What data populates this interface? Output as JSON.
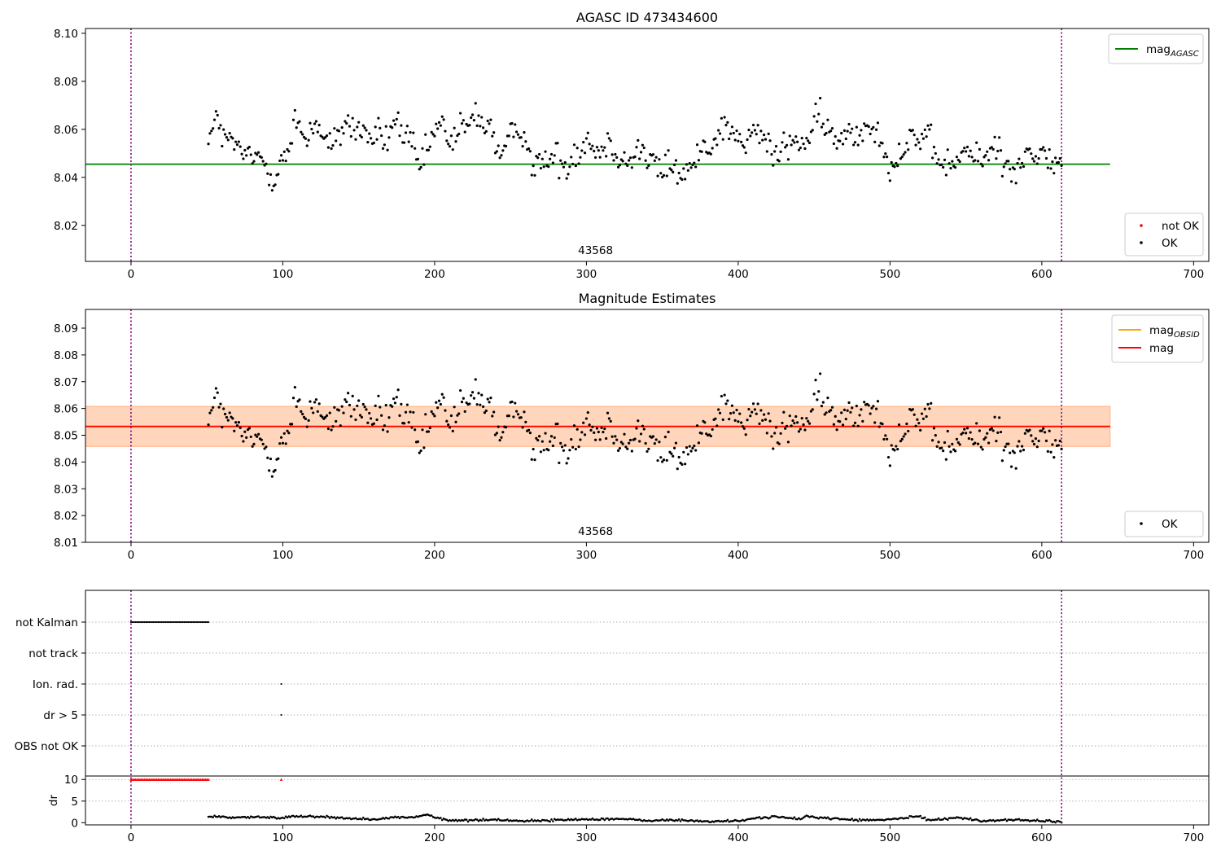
{
  "chart_data": [
    {
      "id": "panel1",
      "type": "scatter",
      "title": "AGASC ID 473434600",
      "xlim": [
        -30,
        710
      ],
      "ylim": [
        8.005,
        8.102
      ],
      "xticks": [
        0,
        100,
        200,
        300,
        400,
        500,
        600,
        700
      ],
      "yticks": [
        8.02,
        8.04,
        8.06,
        8.08,
        8.1
      ],
      "ytick_format": 2,
      "obsid_label": {
        "text": "43568",
        "x": 306
      },
      "vlines": [
        0,
        613
      ],
      "vline_color": "#800080",
      "hlines": [
        {
          "name": "mag_AGASC",
          "y": 8.0455,
          "x": [
            -30,
            645
          ],
          "color": "#008000"
        }
      ],
      "legend_top": [
        {
          "label_main": "mag",
          "label_sub": "AGASC",
          "kind": "line",
          "color": "#008000"
        }
      ],
      "legend_bottom": [
        {
          "label": "not OK",
          "kind": "dot",
          "color": "#ff0000"
        },
        {
          "label": "OK",
          "kind": "dot",
          "color": "#000000"
        }
      ],
      "series": [
        {
          "name": "OK",
          "color": "#000000",
          "source": "mag_points"
        }
      ]
    },
    {
      "id": "panel2",
      "type": "scatter",
      "title": "Magnitude Estimates",
      "xlim": [
        -30,
        710
      ],
      "ylim": [
        8.01,
        8.097
      ],
      "xticks": [
        0,
        100,
        200,
        300,
        400,
        500,
        600,
        700
      ],
      "yticks": [
        8.01,
        8.02,
        8.03,
        8.04,
        8.05,
        8.06,
        8.07,
        8.08,
        8.09
      ],
      "ytick_format": 2,
      "obsid_label": {
        "text": "43568",
        "x": 306
      },
      "vlines": [
        0,
        613
      ],
      "vline_color": "#800080",
      "bands": [
        {
          "y": [
            8.0458,
            8.0608
          ],
          "x": [
            -30,
            645
          ],
          "color": "#ff69b4",
          "opacity": 0.18
        },
        {
          "y": [
            8.0458,
            8.0608
          ],
          "x": [
            -30,
            645
          ],
          "color": "#ffa500",
          "opacity": 0.22
        }
      ],
      "hlines": [
        {
          "name": "mag_OBSID",
          "y": 8.0532,
          "x": [
            -30,
            645
          ],
          "color": "#ffa500"
        },
        {
          "name": "mag",
          "y": 8.0533,
          "x": [
            -30,
            645
          ],
          "color": "#ff0000"
        }
      ],
      "legend_top": [
        {
          "label_main": "mag",
          "label_sub": "OBSID",
          "kind": "line",
          "color": "#ffa500"
        },
        {
          "label_main": "mag",
          "label_sub": "",
          "kind": "line",
          "color": "#ff0000"
        }
      ],
      "legend_bottom": [
        {
          "label": "OK",
          "kind": "dot",
          "color": "#000000"
        }
      ],
      "series": [
        {
          "name": "OK",
          "color": "#000000",
          "source": "mag_points"
        }
      ]
    },
    {
      "id": "panel3",
      "type": "scatter",
      "xlim": [
        -30,
        710
      ],
      "xticks": [
        0,
        100,
        200,
        300,
        400,
        500,
        600,
        700
      ],
      "vlines": [
        0,
        613
      ],
      "vline_color": "#800080",
      "flag_rows": [
        "not Kalman",
        "not track",
        "Ion. rad.",
        "dr > 5",
        "OBS not OK"
      ],
      "flags": [
        {
          "row": "not Kalman",
          "x_start": 0,
          "x_end": 51,
          "step": 1
        },
        {
          "row": "Ion. rad.",
          "x": [
            99
          ]
        },
        {
          "row": "dr > 5",
          "x": [
            99
          ]
        }
      ],
      "dr": {
        "ylabel": "dr",
        "ylim": [
          -0.5,
          10.8
        ],
        "yticks": [
          0,
          5,
          10
        ],
        "capped_value": 10,
        "capped_color": "#ff0000",
        "capped": [
          {
            "x_start": 0,
            "x_end": 51,
            "step": 1
          },
          {
            "x": [
              99
            ]
          }
        ],
        "anchors": [
          [
            51,
            1.2
          ],
          [
            55,
            1.5
          ],
          [
            65,
            1.2
          ],
          [
            80,
            1.3
          ],
          [
            90,
            1.2
          ],
          [
            100,
            1.1
          ],
          [
            105,
            1.5
          ],
          [
            120,
            1.5
          ],
          [
            135,
            1.2
          ],
          [
            150,
            0.9
          ],
          [
            165,
            0.9
          ],
          [
            176,
            1.3
          ],
          [
            185,
            1.2
          ],
          [
            195,
            1.9
          ],
          [
            200,
            1.2
          ],
          [
            210,
            0.5
          ],
          [
            225,
            0.6
          ],
          [
            240,
            0.7
          ],
          [
            260,
            0.4
          ],
          [
            280,
            0.6
          ],
          [
            300,
            0.8
          ],
          [
            320,
            0.9
          ],
          [
            340,
            0.5
          ],
          [
            360,
            0.6
          ],
          [
            380,
            0.3
          ],
          [
            400,
            0.4
          ],
          [
            415,
            1.2
          ],
          [
            425,
            1.4
          ],
          [
            440,
            0.8
          ],
          [
            445,
            1.5
          ],
          [
            460,
            1.0
          ],
          [
            480,
            0.6
          ],
          [
            495,
            0.6
          ],
          [
            500,
            0.8
          ],
          [
            510,
            1.1
          ],
          [
            520,
            1.5
          ],
          [
            525,
            0.6
          ],
          [
            535,
            0.9
          ],
          [
            545,
            1.2
          ],
          [
            560,
            0.4
          ],
          [
            580,
            0.7
          ],
          [
            600,
            0.4
          ],
          [
            613,
            0.2
          ]
        ]
      }
    }
  ],
  "mag_points": {
    "x_start": 51,
    "x_end": 613,
    "step": 1,
    "anchors": [
      [
        51,
        8.061
      ],
      [
        55,
        8.061
      ],
      [
        57,
        8.068
      ],
      [
        60,
        8.056
      ],
      [
        65,
        8.053
      ],
      [
        70,
        8.053
      ],
      [
        75,
        8.052
      ],
      [
        80,
        8.046
      ],
      [
        85,
        8.047
      ],
      [
        90,
        8.044
      ],
      [
        95,
        8.043
      ],
      [
        98,
        8.046
      ],
      [
        100,
        8.045
      ],
      [
        103,
        8.048
      ],
      [
        105,
        8.052
      ],
      [
        108,
        8.063
      ],
      [
        112,
        8.062
      ],
      [
        118,
        8.057
      ],
      [
        123,
        8.061
      ],
      [
        130,
        8.055
      ],
      [
        135,
        8.056
      ],
      [
        140,
        8.059
      ],
      [
        145,
        8.061
      ],
      [
        150,
        8.062
      ],
      [
        155,
        8.059
      ],
      [
        160,
        8.054
      ],
      [
        165,
        8.056
      ],
      [
        170,
        8.06
      ],
      [
        175,
        8.064
      ],
      [
        180,
        8.055
      ],
      [
        185,
        8.052
      ],
      [
        190,
        8.048
      ],
      [
        195,
        8.049
      ],
      [
        200,
        8.058
      ],
      [
        205,
        8.061
      ],
      [
        210,
        8.058
      ],
      [
        215,
        8.058
      ],
      [
        220,
        8.058
      ],
      [
        225,
        8.065
      ],
      [
        230,
        8.068
      ],
      [
        235,
        8.061
      ],
      [
        240,
        8.052
      ],
      [
        245,
        8.05
      ],
      [
        250,
        8.058
      ],
      [
        255,
        8.06
      ],
      [
        260,
        8.053
      ],
      [
        265,
        8.048
      ],
      [
        270,
        8.046
      ],
      [
        275,
        8.047
      ],
      [
        280,
        8.046
      ],
      [
        285,
        8.047
      ],
      [
        290,
        8.049
      ],
      [
        295,
        8.05
      ],
      [
        300,
        8.054
      ],
      [
        305,
        8.055
      ],
      [
        310,
        8.053
      ],
      [
        315,
        8.052
      ],
      [
        320,
        8.049
      ],
      [
        325,
        8.05
      ],
      [
        330,
        8.049
      ],
      [
        335,
        8.049
      ],
      [
        340,
        8.048
      ],
      [
        345,
        8.047
      ],
      [
        350,
        8.044
      ],
      [
        355,
        8.042
      ],
      [
        360,
        8.043
      ],
      [
        365,
        8.043
      ],
      [
        370,
        8.045
      ],
      [
        375,
        8.048
      ],
      [
        380,
        8.054
      ],
      [
        385,
        8.059
      ],
      [
        390,
        8.061
      ],
      [
        395,
        8.058
      ],
      [
        400,
        8.056
      ],
      [
        405,
        8.056
      ],
      [
        410,
        8.058
      ],
      [
        415,
        8.056
      ],
      [
        420,
        8.054
      ],
      [
        425,
        8.05
      ],
      [
        430,
        8.051
      ],
      [
        435,
        8.053
      ],
      [
        440,
        8.055
      ],
      [
        445,
        8.058
      ],
      [
        450,
        8.06
      ],
      [
        455,
        8.062
      ],
      [
        460,
        8.061
      ],
      [
        465,
        8.055
      ],
      [
        470,
        8.056
      ],
      [
        475,
        8.058
      ],
      [
        480,
        8.06
      ],
      [
        485,
        8.063
      ],
      [
        490,
        8.062
      ],
      [
        495,
        8.05
      ],
      [
        500,
        8.047
      ],
      [
        505,
        8.05
      ],
      [
        510,
        8.051
      ],
      [
        515,
        8.056
      ],
      [
        520,
        8.059
      ],
      [
        525,
        8.056
      ],
      [
        530,
        8.045
      ],
      [
        535,
        8.046
      ],
      [
        540,
        8.047
      ],
      [
        545,
        8.048
      ],
      [
        550,
        8.049
      ],
      [
        555,
        8.048
      ],
      [
        560,
        8.049
      ],
      [
        565,
        8.051
      ],
      [
        570,
        8.05
      ],
      [
        575,
        8.048
      ],
      [
        580,
        8.046
      ],
      [
        585,
        8.044
      ],
      [
        590,
        8.047
      ],
      [
        595,
        8.049
      ],
      [
        600,
        8.051
      ],
      [
        605,
        8.047
      ],
      [
        610,
        8.045
      ],
      [
        613,
        8.043
      ]
    ],
    "noise": 0.0055
  }
}
